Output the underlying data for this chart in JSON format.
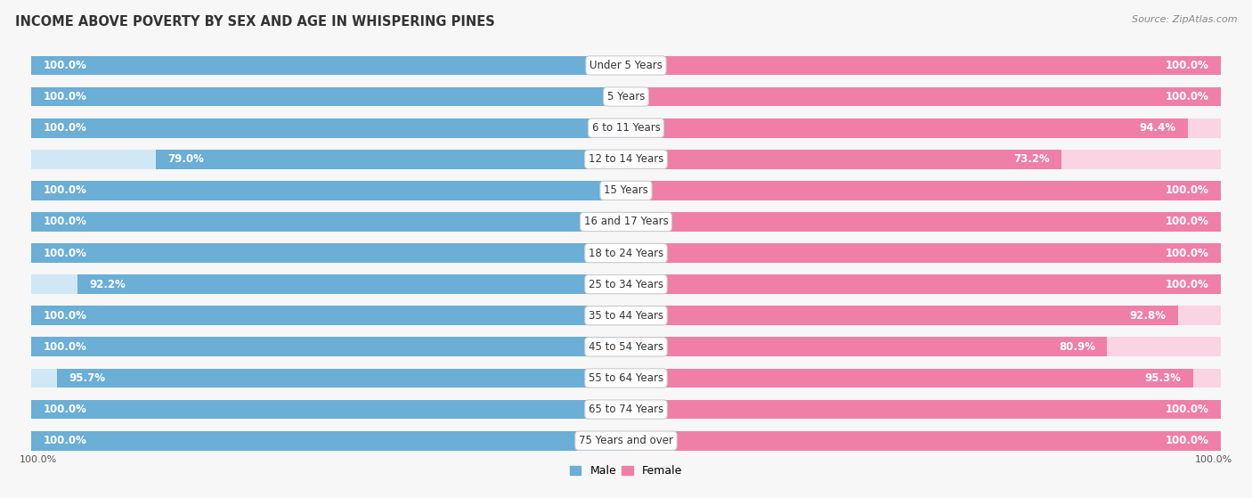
{
  "title": "INCOME ABOVE POVERTY BY SEX AND AGE IN WHISPERING PINES",
  "source": "Source: ZipAtlas.com",
  "categories": [
    "Under 5 Years",
    "5 Years",
    "6 to 11 Years",
    "12 to 14 Years",
    "15 Years",
    "16 and 17 Years",
    "18 to 24 Years",
    "25 to 34 Years",
    "35 to 44 Years",
    "45 to 54 Years",
    "55 to 64 Years",
    "65 to 74 Years",
    "75 Years and over"
  ],
  "male_values": [
    100.0,
    100.0,
    100.0,
    79.0,
    100.0,
    100.0,
    100.0,
    92.2,
    100.0,
    100.0,
    95.7,
    100.0,
    100.0
  ],
  "female_values": [
    100.0,
    100.0,
    94.4,
    73.2,
    100.0,
    100.0,
    100.0,
    100.0,
    92.8,
    80.9,
    95.3,
    100.0,
    100.0
  ],
  "male_color": "#6baed6",
  "female_color": "#f07fa8",
  "male_light_color": "#d0e8f5",
  "female_light_color": "#fad4e2",
  "track_color": "#e8e8e8",
  "background_color": "#f7f7f7",
  "title_fontsize": 10.5,
  "label_fontsize": 8.5,
  "value_fontsize": 8.5,
  "max_value": 100.0
}
